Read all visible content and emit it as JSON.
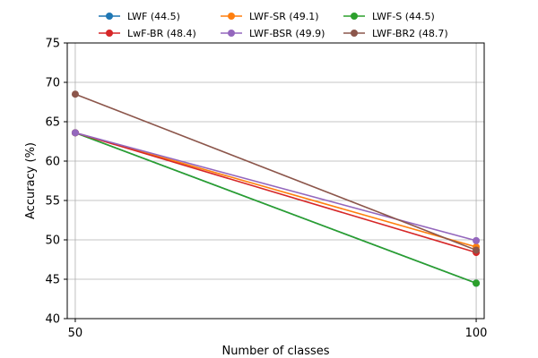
{
  "chart_data": {
    "type": "line",
    "title": "",
    "xlabel": "Number of classes",
    "ylabel": "Accuracy (%)",
    "x": [
      50,
      100
    ],
    "xticks": [
      50,
      100
    ],
    "xlim": [
      49,
      101
    ],
    "ylim": [
      40,
      75
    ],
    "yticks": [
      40,
      45,
      50,
      55,
      60,
      65,
      70,
      75
    ],
    "grid": true,
    "legend_position": "top",
    "series": [
      {
        "name": "LWF (44.5)",
        "color": "#1f77b4",
        "values": [
          63.6,
          44.5
        ]
      },
      {
        "name": "LWF-SR (49.1)",
        "color": "#ff7f0e",
        "values": [
          63.6,
          49.1
        ]
      },
      {
        "name": "LWF-S (44.5)",
        "color": "#2ca02c",
        "values": [
          63.6,
          44.5
        ]
      },
      {
        "name": "LwF-BR (48.4)",
        "color": "#d62728",
        "values": [
          63.6,
          48.4
        ]
      },
      {
        "name": "LWF-BSR (49.9)",
        "color": "#9467bd",
        "values": [
          63.6,
          49.9
        ]
      },
      {
        "name": "LWF-BR2 (48.7)",
        "color": "#8c564b",
        "values": [
          68.5,
          48.7
        ]
      }
    ]
  }
}
